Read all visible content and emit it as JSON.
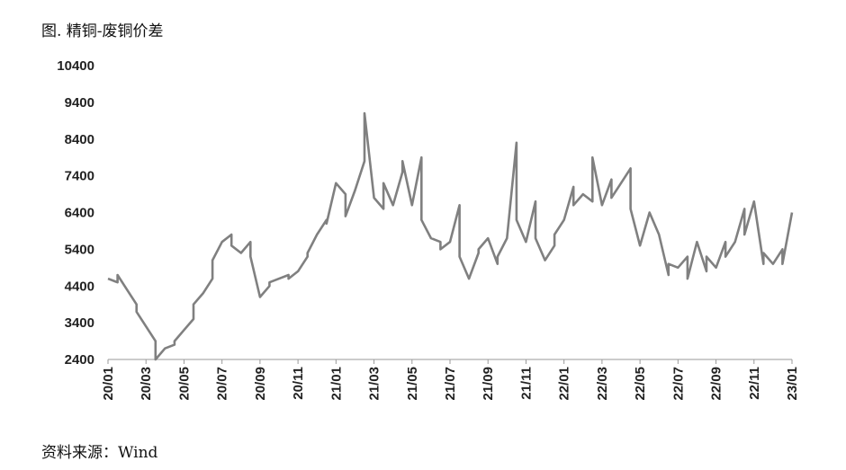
{
  "title": "图. 精铜-废铜价差",
  "source": "资料来源：Wind",
  "chart_data": {
    "type": "line",
    "ylim": [
      2400,
      10400
    ],
    "yticks": [
      "10400",
      "9400",
      "8400",
      "7400",
      "6400",
      "5400",
      "4400",
      "3400",
      "2400"
    ],
    "xticks": [
      "20/01",
      "20/03",
      "20/05",
      "20/07",
      "20/09",
      "20/11",
      "21/01",
      "21/03",
      "21/05",
      "21/07",
      "21/09",
      "21/11",
      "22/01",
      "22/03",
      "22/05",
      "22/07",
      "22/09",
      "22/11",
      "23/01"
    ],
    "grid": false,
    "legend": "none",
    "line_color": "#808080",
    "series": [
      {
        "points": [
          [
            "20/01",
            4600
          ],
          [
            "20/01+",
            4500
          ],
          [
            "20/02-",
            4700
          ],
          [
            "20/02",
            4300
          ],
          [
            "20/02+",
            3900
          ],
          [
            "20/03-",
            3700
          ],
          [
            "20/03",
            3300
          ],
          [
            "20/03+",
            2900
          ],
          [
            "20/04-",
            2400
          ],
          [
            "20/04",
            2700
          ],
          [
            "20/04+",
            2800
          ],
          [
            "20/05-",
            2900
          ],
          [
            "20/05",
            3200
          ],
          [
            "20/05+",
            3500
          ],
          [
            "20/06-",
            3900
          ],
          [
            "20/06",
            4200
          ],
          [
            "20/06+",
            4600
          ],
          [
            "20/07-",
            5100
          ],
          [
            "20/07",
            5600
          ],
          [
            "20/07+",
            5800
          ],
          [
            "20/08-",
            5500
          ],
          [
            "20/08",
            5300
          ],
          [
            "20/08+",
            5600
          ],
          [
            "20/09-",
            5200
          ],
          [
            "20/09",
            4100
          ],
          [
            "20/09+",
            4400
          ],
          [
            "20/10-",
            4500
          ],
          [
            "20/10",
            4600
          ],
          [
            "20/10+",
            4700
          ],
          [
            "20/11-",
            4600
          ],
          [
            "20/11",
            4800
          ],
          [
            "20/11+",
            5200
          ],
          [
            "20/12-",
            5300
          ],
          [
            "20/12",
            5800
          ],
          [
            "20/12+",
            6200
          ],
          [
            "21/01-",
            6100
          ],
          [
            "21/01",
            7200
          ],
          [
            "21/01+",
            6900
          ],
          [
            "21/02-",
            6300
          ],
          [
            "21/02",
            7000
          ],
          [
            "21/02+",
            7800
          ],
          [
            "21/03-",
            9100
          ],
          [
            "21/03",
            6800
          ],
          [
            "21/03+",
            6500
          ],
          [
            "21/04-",
            7200
          ],
          [
            "21/04",
            6600
          ],
          [
            "21/04+",
            7500
          ],
          [
            "21/05-",
            7800
          ],
          [
            "21/05",
            6600
          ],
          [
            "21/05+",
            7900
          ],
          [
            "21/06-",
            6200
          ],
          [
            "21/06",
            5700
          ],
          [
            "21/06+",
            5600
          ],
          [
            "21/07-",
            5400
          ],
          [
            "21/07",
            5600
          ],
          [
            "21/07+",
            6600
          ],
          [
            "21/08-",
            5200
          ],
          [
            "21/08",
            4600
          ],
          [
            "21/08+",
            5300
          ],
          [
            "21/09-",
            5400
          ],
          [
            "21/09",
            5700
          ],
          [
            "21/09+",
            5000
          ],
          [
            "21/10-",
            5200
          ],
          [
            "21/10",
            5700
          ],
          [
            "21/10+",
            8300
          ],
          [
            "21/11-",
            6200
          ],
          [
            "21/11",
            5600
          ],
          [
            "21/11+",
            6700
          ],
          [
            "21/12-",
            5700
          ],
          [
            "21/12",
            5100
          ],
          [
            "21/12+",
            5500
          ],
          [
            "22/01-",
            5800
          ],
          [
            "22/01",
            6200
          ],
          [
            "22/01+",
            7100
          ],
          [
            "22/02-",
            6600
          ],
          [
            "22/02",
            6900
          ],
          [
            "22/02+",
            6700
          ],
          [
            "22/03-",
            7900
          ],
          [
            "22/03",
            6600
          ],
          [
            "22/03+",
            7300
          ],
          [
            "22/04-",
            6800
          ],
          [
            "22/04",
            7200
          ],
          [
            "22/04+",
            7600
          ],
          [
            "22/05-",
            6500
          ],
          [
            "22/05",
            5500
          ],
          [
            "22/05+",
            6400
          ],
          [
            "22/06-",
            6400
          ],
          [
            "22/06",
            5800
          ],
          [
            "22/06+",
            4700
          ],
          [
            "22/07-",
            5000
          ],
          [
            "22/07",
            4900
          ],
          [
            "22/07+",
            5200
          ],
          [
            "22/08-",
            4600
          ],
          [
            "22/08",
            5600
          ],
          [
            "22/08+",
            4800
          ],
          [
            "22/09-",
            5200
          ],
          [
            "22/09",
            4900
          ],
          [
            "22/09+",
            5600
          ],
          [
            "22/10-",
            5200
          ],
          [
            "22/10",
            5600
          ],
          [
            "22/10+",
            6500
          ],
          [
            "22/11-",
            5800
          ],
          [
            "22/11",
            6700
          ],
          [
            "22/11+",
            5000
          ],
          [
            "22/12-",
            5300
          ],
          [
            "22/12",
            5000
          ],
          [
            "22/12+",
            5400
          ],
          [
            "23/01-",
            5000
          ],
          [
            "23/01",
            6400
          ]
        ]
      }
    ]
  }
}
